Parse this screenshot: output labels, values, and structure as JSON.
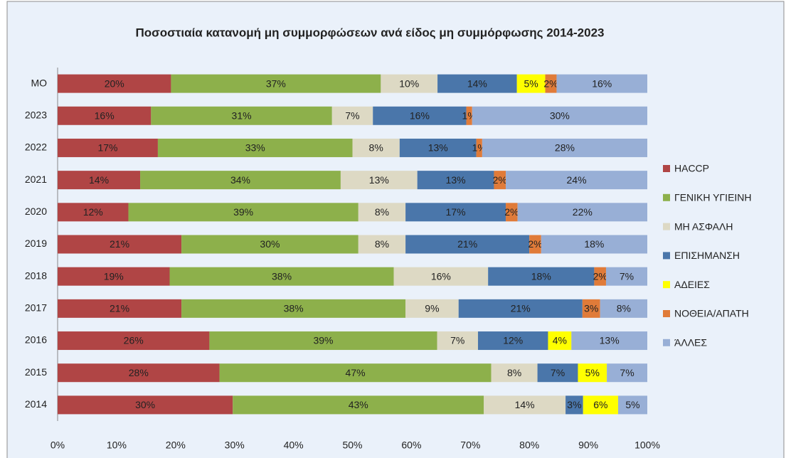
{
  "chart_data": {
    "type": "stacked100",
    "title": "Ποσοστιαία κατανομή μη συμμορφώσεων ανά είδος μη συμμόρφωσης  2014-2023",
    "orientation": "horizontal",
    "categories": [
      "ΜΟ",
      "2023",
      "2022",
      "2021",
      "2020",
      "2019",
      "2018",
      "2017",
      "2016",
      "2015",
      "2014"
    ],
    "series": [
      {
        "name": "HACCP",
        "color": "#b04545",
        "values": [
          20,
          16,
          17,
          14,
          12,
          21,
          19,
          21,
          26,
          28,
          30
        ],
        "value_labels": [
          "20%",
          "16%",
          "17%",
          "14%",
          "12%",
          "21%",
          "19%",
          "21%",
          "26%",
          "28%",
          "30%"
        ]
      },
      {
        "name": "ΓΕΝΙΚΗ ΥΓΙΕΙΝΗ",
        "color": "#8db04b",
        "values": [
          37,
          31,
          33,
          34,
          39,
          30,
          38,
          38,
          39,
          47,
          43
        ],
        "value_labels": [
          "37%",
          "31%",
          "33%",
          "34%",
          "39%",
          "30%",
          "38%",
          "38%",
          "39%",
          "47%",
          "43%"
        ]
      },
      {
        "name": "ΜΗ ΑΣΦΑΛΗ",
        "color": "#ddd9c4",
        "values": [
          10,
          7,
          8,
          13,
          8,
          8,
          16,
          9,
          7,
          8,
          14
        ],
        "value_labels": [
          "10%",
          "7%",
          "8%",
          "13%",
          "8%",
          "8%",
          "16%",
          "9%",
          "7%",
          "8%",
          "14%"
        ]
      },
      {
        "name": "ΕΠΙΣΗΜΑΝΣΗ",
        "color": "#4a76aa",
        "values": [
          14,
          16,
          13,
          13,
          17,
          21,
          18,
          21,
          12,
          7,
          3
        ],
        "value_labels": [
          "14%",
          "16%",
          "13%",
          "13%",
          "17%",
          "21%",
          "18%",
          "21%",
          "12%",
          "7%",
          "3%"
        ]
      },
      {
        "name": "ΑΔΕΙΕΣ",
        "color": "#ffff00",
        "values": [
          5,
          0,
          0,
          0,
          0,
          0,
          0,
          0,
          4,
          5,
          6
        ],
        "value_labels": [
          "5%",
          null,
          null,
          null,
          null,
          null,
          null,
          null,
          "4%",
          "5%",
          "6%"
        ]
      },
      {
        "name": "ΝΟΘΕΙΑ/ΑΠΑΤΗ",
        "color": "#e07b39",
        "values": [
          2,
          1,
          1,
          2,
          2,
          2,
          2,
          3,
          0,
          0,
          0
        ],
        "value_labels": [
          "2%",
          "1%",
          "1%",
          "2%",
          "2%",
          "2%",
          "2%",
          "3%",
          null,
          null,
          null
        ]
      },
      {
        "name": "ΆΛΛΕΣ",
        "color": "#98afd6",
        "values": [
          16,
          30,
          28,
          24,
          22,
          18,
          7,
          8,
          13,
          7,
          5
        ],
        "value_labels": [
          "16%",
          "30%",
          "28%",
          "24%",
          "22%",
          "18%",
          "7%",
          "8%",
          "13%",
          "7%",
          "5%"
        ]
      }
    ],
    "xlim": [
      0,
      100
    ],
    "xticks": [
      {
        "value": 0,
        "label": "0%"
      },
      {
        "value": 10,
        "label": "10%"
      },
      {
        "value": 20,
        "label": "20%"
      },
      {
        "value": 30,
        "label": "30%"
      },
      {
        "value": 40,
        "label": "40%"
      },
      {
        "value": 50,
        "label": "50%"
      },
      {
        "value": 60,
        "label": "60%"
      },
      {
        "value": 70,
        "label": "70%"
      },
      {
        "value": 80,
        "label": "80%"
      },
      {
        "value": 90,
        "label": "90%"
      },
      {
        "value": 100,
        "label": "100%"
      }
    ],
    "grid": false,
    "legend": "right"
  }
}
